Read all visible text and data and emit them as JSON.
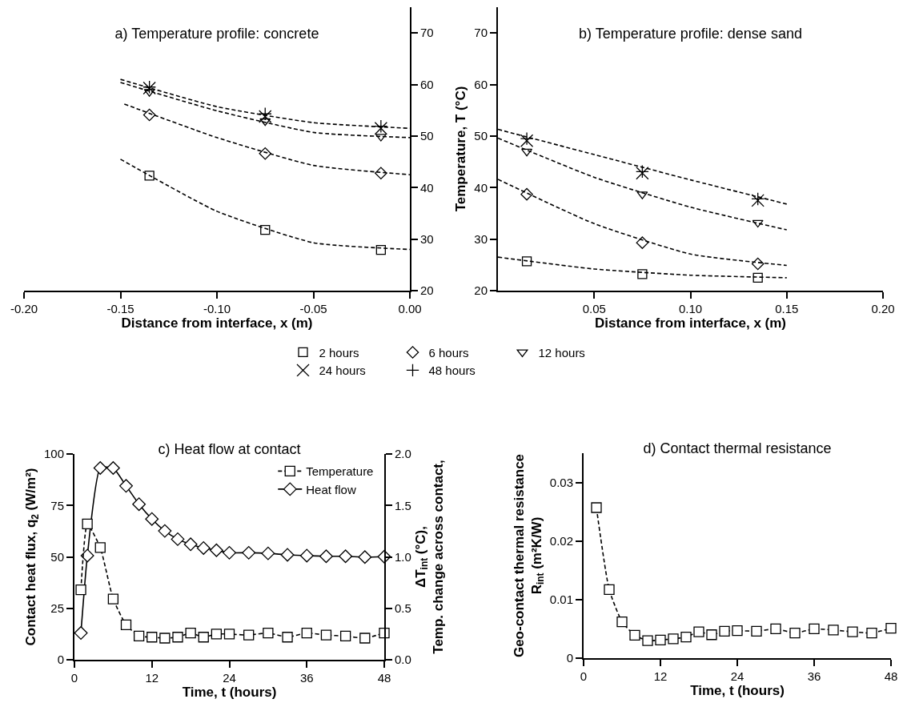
{
  "chart_data": [
    {
      "type": "scatter",
      "title": "a) Temperature profile: concrete",
      "xlabel": "Distance from interface, x (m)",
      "xlim": [
        -0.2,
        0
      ],
      "xticks": [
        {
          "value": -0.2,
          "label": "-0.20"
        },
        {
          "value": -0.15,
          "label": "-0.15"
        },
        {
          "value": -0.1,
          "label": "-0.10"
        },
        {
          "value": -0.05,
          "label": "-0.05"
        },
        {
          "value": 0,
          "label": "0.00"
        }
      ],
      "ylim": [
        20,
        75
      ],
      "yticks": [
        20,
        30,
        40,
        50,
        60,
        70
      ],
      "legend": "bottom",
      "x": [
        -0.135,
        -0.075,
        -0.015
      ],
      "series": [
        {
          "name": "2 hours",
          "color": "#000000",
          "marker": "square",
          "values": [
            42.3,
            31.8,
            27.9
          ]
        },
        {
          "name": "6 hours",
          "color": "#000000",
          "marker": "diamond",
          "values": [
            54.1,
            46.6,
            42.8
          ]
        },
        {
          "name": "12 hours",
          "color": "#000000",
          "marker": "triangle",
          "values": [
            58.6,
            52.9,
            49.9
          ]
        },
        {
          "name": "24 hours",
          "color": "#000000",
          "marker": "x",
          "values": [
            59.3,
            53.8,
            51.5
          ]
        },
        {
          "name": "48 hours",
          "color": "#000000",
          "marker": "cross",
          "values": [
            59.5,
            54.3,
            51.9
          ]
        },
        {
          "type": "line",
          "color": "#000000",
          "line_style": "dashed",
          "x": [
            -0.15,
            -0.1,
            -0.05,
            0
          ],
          "values": [
            45.5,
            35.4,
            29.3,
            28
          ]
        },
        {
          "type": "line",
          "color": "#000000",
          "line_style": "dashed",
          "x": [
            -0.148,
            -0.1,
            -0.05,
            0
          ],
          "values": [
            56.2,
            49.7,
            44.3,
            42.5
          ]
        },
        {
          "type": "line",
          "color": "#000000",
          "line_style": "dashed",
          "x": [
            -0.15,
            -0.1,
            -0.05,
            0
          ],
          "values": [
            60.4,
            54.9,
            50.7,
            49.7
          ]
        },
        {
          "type": "line",
          "color": "#000000",
          "line_style": "dashed",
          "x": [
            -0.15,
            -0.1,
            -0.05,
            0
          ],
          "values": [
            61,
            55.7,
            52.6,
            51.5
          ]
        }
      ]
    },
    {
      "type": "scatter",
      "title": "b) Temperature profile: dense sand",
      "xlabel": "Distance from interface, x (m)",
      "ylabel": "Temperature, T (°C)",
      "xlim": [
        0,
        0.2
      ],
      "xticks": [
        {
          "value": 0.05,
          "label": "0.05"
        },
        {
          "value": 0.1,
          "label": "0.10"
        },
        {
          "value": 0.15,
          "label": "0.15"
        },
        {
          "value": 0.2,
          "label": "0.20"
        }
      ],
      "ylim": [
        20,
        75
      ],
      "yticks": [
        20,
        30,
        40,
        50,
        60,
        70
      ],
      "x": [
        0.015,
        0.075,
        0.135
      ],
      "series": [
        {
          "color": "#000000",
          "marker": "square",
          "values": [
            25.7,
            23.2,
            22.5
          ]
        },
        {
          "color": "#000000",
          "marker": "diamond",
          "values": [
            38.7,
            29.3,
            25.2
          ]
        },
        {
          "color": "#000000",
          "marker": "triangle",
          "values": [
            47,
            38.7,
            33.2
          ]
        },
        {
          "color": "#000000",
          "marker": "x",
          "values": [
            49.1,
            42.8,
            37.5
          ]
        },
        {
          "color": "#000000",
          "marker": "cross",
          "values": [
            49.5,
            43.1,
            37.8
          ]
        },
        {
          "type": "line",
          "color": "#000000",
          "line_style": "dashed",
          "x": [
            0,
            0.05,
            0.1,
            0.15
          ],
          "values": [
            26.5,
            24.2,
            23,
            22.5
          ]
        },
        {
          "type": "line",
          "color": "#000000",
          "line_style": "dashed",
          "x": [
            0,
            0.05,
            0.1,
            0.15
          ],
          "values": [
            41.6,
            33,
            27.1,
            24.9
          ]
        },
        {
          "type": "line",
          "color": "#000000",
          "line_style": "dashed",
          "x": [
            0,
            0.05,
            0.1,
            0.15
          ],
          "values": [
            49.6,
            42,
            36.2,
            31.8
          ]
        },
        {
          "type": "line",
          "color": "#000000",
          "line_style": "dashed",
          "x": [
            0,
            0.05,
            0.1,
            0.15
          ],
          "values": [
            51.3,
            46.4,
            41.5,
            36.8
          ]
        }
      ]
    },
    {
      "type": "line",
      "title": "c) Heat flow at contact",
      "xlabel": "Time, t (hours)",
      "ylabel": "Contact heat flux, q$_{2}$ (W/m²)",
      "y2label": "ΔT$_{int}$ (°C),\nTemp. change across contact,",
      "xlim": [
        0,
        48
      ],
      "xticks": [
        0,
        12,
        24,
        36,
        48
      ],
      "ylim": [
        0,
        100
      ],
      "yticks": [
        0,
        25,
        50,
        75,
        100
      ],
      "y2lim": [
        0,
        2
      ],
      "y2ticks": [
        {
          "value": 0,
          "label": "0.0"
        },
        {
          "value": 0.5,
          "label": "0.5"
        },
        {
          "value": 1,
          "label": "1.0"
        },
        {
          "value": 1.5,
          "label": "1.5"
        },
        {
          "value": 2,
          "label": "2.0"
        }
      ],
      "legend": "top right",
      "series": [
        {
          "name": "Temperature",
          "color": "#000000",
          "axis": "y2",
          "marker": "square",
          "line_style": "dashed",
          "x": [
            1,
            2,
            4,
            6,
            8,
            10,
            12,
            14,
            16,
            18,
            20,
            22,
            24,
            27,
            30,
            33,
            36,
            39,
            42,
            45,
            48
          ],
          "values": [
            0.68,
            1.32,
            1.09,
            0.59,
            0.34,
            0.23,
            0.22,
            0.21,
            0.22,
            0.26,
            0.22,
            0.25,
            0.25,
            0.24,
            0.26,
            0.22,
            0.26,
            0.24,
            0.23,
            0.21,
            0.26
          ]
        },
        {
          "name": "Heat flow",
          "color": "#000000",
          "marker": "diamond",
          "line_style": "solid",
          "x": [
            1,
            2,
            4,
            6,
            8,
            10,
            12,
            14,
            16,
            18,
            20,
            22,
            24,
            27,
            30,
            33,
            36,
            39,
            42,
            45,
            48
          ],
          "values": [
            13,
            50.6,
            93.2,
            93.2,
            84.5,
            75.6,
            68.4,
            62.6,
            58.6,
            56.1,
            54.3,
            53.2,
            52,
            52,
            51.7,
            51,
            50.6,
            50.3,
            50.3,
            49.9,
            50.1
          ]
        }
      ]
    },
    {
      "type": "line",
      "title": "d) Contact thermal resistance",
      "xlabel": "Time, t (hours)",
      "ylabel": "Geo-contact thermal resistance\nR$_{int}$ (m²K/W)",
      "xlim": [
        0,
        48
      ],
      "xticks": [
        0,
        12,
        24,
        36,
        48
      ],
      "ylim": [
        0,
        0.035
      ],
      "yticks": [
        {
          "value": 0,
          "label": "0"
        },
        0.01,
        0.02,
        0.03
      ],
      "series": [
        {
          "color": "#000000",
          "marker": "square",
          "line_style": "dashed",
          "x": [
            2,
            4,
            6,
            8,
            10,
            12,
            14,
            16,
            18,
            20,
            22,
            24,
            27,
            30,
            33,
            36,
            39,
            42,
            45,
            48
          ],
          "values": [
            0.0257,
            0.0117,
            0.0062,
            0.0039,
            0.003,
            0.0031,
            0.0033,
            0.0036,
            0.0045,
            0.004,
            0.0046,
            0.0047,
            0.0046,
            0.005,
            0.0043,
            0.005,
            0.0048,
            0.0045,
            0.0043,
            0.0051
          ]
        }
      ]
    }
  ]
}
